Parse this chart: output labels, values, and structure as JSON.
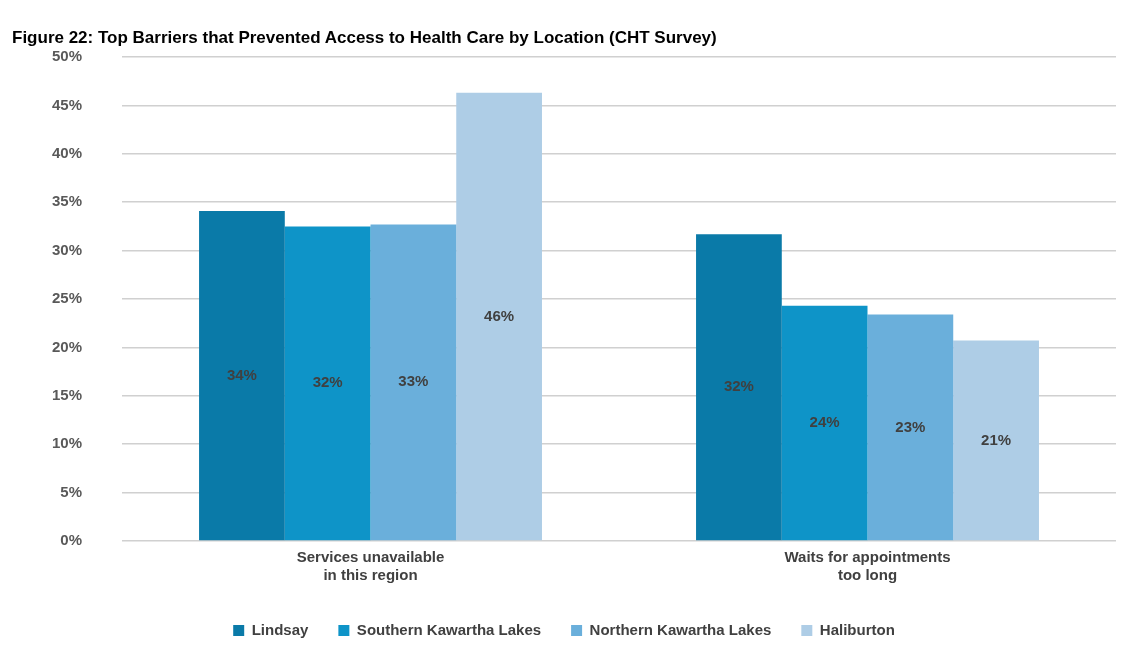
{
  "chart_data": {
    "type": "bar",
    "title": "Figure 22: Top Barriers that Prevented Access to Health Care by Location (CHT Survey)",
    "categories": [
      "Services unavailable in this region",
      "Waits for appointments too long"
    ],
    "series": [
      {
        "name": "Lindsay",
        "color": "#0a7aa8",
        "values": [
          34.1,
          31.7
        ],
        "value_labels": [
          "34%",
          "32%"
        ]
      },
      {
        "name": "Southern Kawartha Lakes",
        "color": "#0e94c8",
        "values": [
          32.5,
          24.3
        ],
        "value_labels": [
          "32%",
          "24%"
        ]
      },
      {
        "name": "Northern Kawartha Lakes",
        "color": "#6aafdb",
        "values": [
          32.7,
          23.4
        ],
        "value_labels": [
          "33%",
          "23%"
        ]
      },
      {
        "name": "Haliburton",
        "color": "#aecde6",
        "values": [
          46.3,
          20.7
        ],
        "value_labels": [
          "46%",
          "21%"
        ]
      }
    ],
    "ylim": [
      0,
      50
    ],
    "yticks": [
      {
        "value": 0,
        "label": "0%"
      },
      {
        "value": 5,
        "label": "5%"
      },
      {
        "value": 10,
        "label": "10%"
      },
      {
        "value": 15,
        "label": "15%"
      },
      {
        "value": 20,
        "label": "20%"
      },
      {
        "value": 25,
        "label": "25%"
      },
      {
        "value": 30,
        "label": "30%"
      },
      {
        "value": 35,
        "label": "35%"
      },
      {
        "value": 40,
        "label": "40%"
      },
      {
        "value": 45,
        "label": "45%"
      },
      {
        "value": 50,
        "label": "50%"
      }
    ],
    "grid": "y",
    "legend": "bottom"
  }
}
